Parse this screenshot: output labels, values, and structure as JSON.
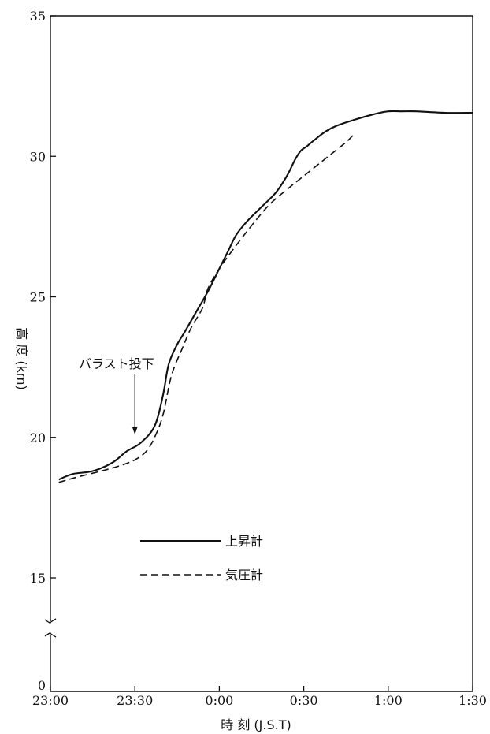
{
  "chart_data": {
    "type": "line",
    "xlabel": "時 刻 (J.S.T)",
    "ylabel": "高 度 (km)",
    "xlim": [
      0,
      150
    ],
    "ylim_upper": [
      15,
      35
    ],
    "axis_break_note": "y axis broken between 0 and 15 km",
    "x_ticks": [
      {
        "value": 0,
        "label": "23:00"
      },
      {
        "value": 30,
        "label": "23:30"
      },
      {
        "value": 60,
        "label": "0:00"
      },
      {
        "value": 90,
        "label": "0:30"
      },
      {
        "value": 120,
        "label": "1:00"
      },
      {
        "value": 150,
        "label": "1:30"
      }
    ],
    "y_ticks": [
      {
        "value": 35,
        "label": "35"
      },
      {
        "value": 30,
        "label": "30"
      },
      {
        "value": 25,
        "label": "25"
      },
      {
        "value": 20,
        "label": "20"
      },
      {
        "value": 15,
        "label": "15"
      }
    ],
    "y_zero_label": "0",
    "series": [
      {
        "name": "上昇計",
        "style": "solid",
        "color": "#111111",
        "x": [
          3,
          8,
          15,
          22,
          27,
          32,
          37,
          40,
          42,
          45,
          48,
          52,
          56,
          60,
          63,
          66,
          70,
          75,
          80,
          84,
          87,
          89,
          91,
          94,
          98,
          102,
          108,
          115,
          120,
          125,
          130,
          140,
          150
        ],
        "y": [
          18.5,
          18.7,
          18.8,
          19.1,
          19.5,
          19.8,
          20.4,
          21.5,
          22.6,
          23.3,
          23.8,
          24.5,
          25.2,
          26.0,
          26.6,
          27.2,
          27.7,
          28.2,
          28.7,
          29.3,
          29.9,
          30.2,
          30.35,
          30.6,
          30.9,
          31.1,
          31.3,
          31.5,
          31.6,
          31.6,
          31.6,
          31.55,
          31.55
        ]
      },
      {
        "name": "気圧計",
        "style": "dashed",
        "color": "#111111",
        "x": [
          3,
          10,
          18,
          25,
          30,
          34,
          37,
          40,
          43,
          47,
          50,
          54,
          56,
          60,
          65,
          72,
          78,
          85,
          90,
          95,
          100,
          105,
          108
        ],
        "y": [
          18.4,
          18.6,
          18.8,
          19.0,
          19.2,
          19.5,
          20.0,
          20.8,
          22.2,
          23.2,
          23.9,
          24.6,
          25.3,
          26.0,
          26.7,
          27.6,
          28.3,
          28.9,
          29.3,
          29.7,
          30.1,
          30.5,
          30.8
        ]
      }
    ],
    "legend": {
      "position": "lower-left",
      "entries": [
        {
          "label": "上昇計",
          "style": "solid"
        },
        {
          "label": "気圧計",
          "style": "dashed"
        }
      ]
    },
    "annotations": [
      {
        "text": "バラスト投下",
        "x": 30,
        "y_arrow_tip": 20.1,
        "kind": "arrow-down"
      }
    ],
    "grid": false
  }
}
